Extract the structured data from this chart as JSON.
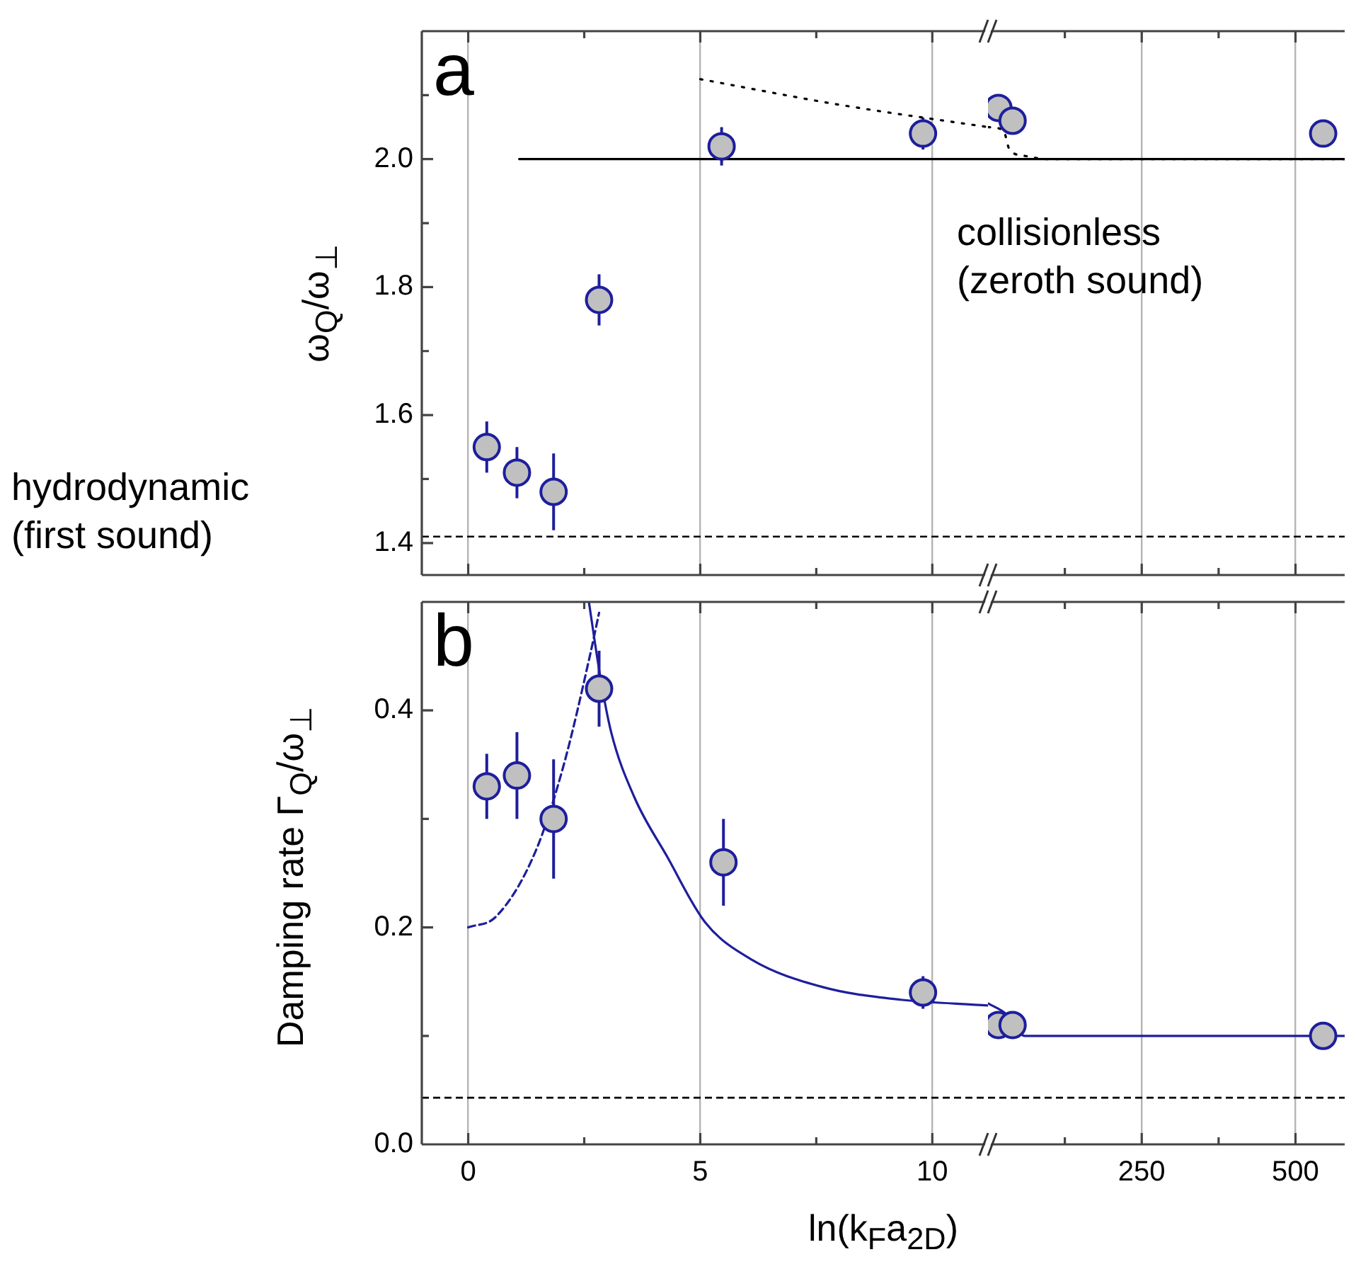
{
  "chart_data": [
    {
      "type": "scatter",
      "title": "a",
      "ylabel": "ω$_{Q}$/ω$_{⊥}$",
      "annotations": [
        "hydrodynamic (first sound)"
      ],
      "xlim": [
        -1,
        11.2
      ],
      "xticks": [
        0,
        {
          "value": 2.5,
          "label": null
        },
        5,
        {
          "value": 7.5,
          "label": null
        },
        10
      ],
      "ylim": [
        1.35,
        2.2
      ],
      "yticks": [
        1.4,
        {
          "value": 1.5,
          "label": null
        },
        1.6,
        {
          "value": 1.7,
          "label": null
        },
        1.8,
        {
          "value": 1.9,
          "label": null
        },
        {
          "value": 2,
          "label": "2.0"
        },
        {
          "value": 2.1,
          "label": null
        }
      ],
      "tick_labels": "y",
      "grid": "x",
      "ref_lines": [
        {
          "axis": "y",
          "value": 1.41,
          "color": "#000000",
          "line_style": "dashed"
        }
      ],
      "series": [
        {
          "type": "scatter",
          "color": "#1e1e9c",
          "marker": "circle",
          "x": [
            0.4,
            1.05,
            1.84,
            2.82,
            5.46,
            9.8
          ],
          "values": [
            1.55,
            1.51,
            1.48,
            1.78,
            2.02,
            2.04
          ],
          "errors": [
            0.04,
            0.04,
            0.06,
            0.04,
            0.03,
            0.025
          ]
        },
        {
          "type": "line",
          "color": "#000000",
          "line_style": "solid",
          "x": [
            1.1,
            11.2
          ],
          "values": [
            2,
            2
          ]
        },
        {
          "type": "line",
          "color": "#000000",
          "line_style": "dotted",
          "x": [
            5,
            8,
            11.2
          ],
          "values": [
            2.125,
            2.085,
            2.05
          ]
        }
      ]
    },
    {
      "type": "scatter",
      "annotations": [
        "collisionless (zeroth sound)"
      ],
      "xlim": [
        0,
        580
      ],
      "xticks": [
        {
          "value": 125,
          "label": null
        },
        250,
        {
          "value": 375,
          "label": null
        },
        500
      ],
      "ylim": [
        1.35,
        2.2
      ],
      "tick_labels": false,
      "grid": "x",
      "ref_lines": [
        {
          "axis": "y",
          "value": 1.41,
          "color": "#000000",
          "line_style": "dashed"
        }
      ],
      "series": [
        {
          "type": "scatter",
          "color": "#1e1e9c",
          "marker": "circle",
          "x": [
            17,
            40,
            545
          ],
          "values": [
            2.08,
            2.06,
            2.04
          ]
        },
        {
          "type": "line",
          "color": "#000000",
          "line_style": "solid",
          "x": [
            0,
            580
          ],
          "values": [
            2,
            2
          ]
        },
        {
          "type": "line",
          "color": "#000000",
          "line_style": "dotted",
          "x": [
            0,
            25,
            35,
            60,
            100,
            580
          ],
          "values": [
            2.05,
            2.045,
            2.015,
            2.005,
            2,
            2
          ]
        }
      ]
    },
    {
      "type": "scatter",
      "title": "b",
      "ylabel": "Damping rate Γ$_{Q}$/ω$_{⊥}$",
      "xlabel": "ln(k$_{F}$a$_{2D}$)",
      "xlim": [
        -1,
        11.2
      ],
      "xticks": [
        0,
        {
          "value": 2.5,
          "label": null
        },
        5,
        {
          "value": 7.5,
          "label": null
        },
        10
      ],
      "ylim": [
        0,
        0.5
      ],
      "yticks": [
        {
          "value": 0,
          "label": "0.0"
        },
        {
          "value": 0.1,
          "label": null
        },
        0.2,
        {
          "value": 0.3,
          "label": null
        },
        0.4
      ],
      "grid": "x",
      "ref_lines": [
        {
          "axis": "y",
          "value": 0.043,
          "color": "#000000",
          "line_style": "dashed"
        }
      ],
      "series": [
        {
          "type": "scatter",
          "color": "#1e1e9c",
          "marker": "circle",
          "x": [
            0.4,
            1.05,
            1.84,
            2.82,
            5.5,
            9.8
          ],
          "values": [
            0.33,
            0.34,
            0.3,
            0.42,
            0.26,
            0.14
          ],
          "errors": [
            0.03,
            0.04,
            0.055,
            0.035,
            0.04,
            0.015
          ]
        },
        {
          "type": "line",
          "color": "#1e1e9c",
          "line_style": "dashed",
          "x": [
            0,
            0.6,
            1.45,
            2.06,
            2.62,
            2.82
          ],
          "values": [
            0.2,
            0.21,
            0.27,
            0.35,
            0.45,
            0.49
          ]
        },
        {
          "type": "line",
          "color": "#1e1e9c",
          "line_style": "solid",
          "x": [
            2.6,
            2.85,
            3.08,
            3.58,
            4.29,
            5.1,
            6.12,
            7.64,
            9.17,
            11.2
          ],
          "values": [
            0.5,
            0.43,
            0.38,
            0.32,
            0.265,
            0.205,
            0.17,
            0.145,
            0.134,
            0.128
          ]
        }
      ]
    },
    {
      "type": "scatter",
      "xlim": [
        0,
        580
      ],
      "xticks": [
        {
          "value": 125,
          "label": null
        },
        250,
        {
          "value": 375,
          "label": null
        },
        500
      ],
      "ylim": [
        0,
        0.5
      ],
      "tick_labels": "x",
      "grid": "x",
      "ref_lines": [
        {
          "axis": "y",
          "value": 0.043,
          "color": "#000000",
          "line_style": "dashed"
        }
      ],
      "series": [
        {
          "type": "scatter",
          "color": "#1e1e9c",
          "marker": "circle",
          "x": [
            17,
            40,
            545
          ],
          "values": [
            0.11,
            0.11,
            0.1
          ]
        },
        {
          "type": "line",
          "color": "#1e1e9c",
          "line_style": "solid",
          "x": [
            0,
            30,
            60,
            580
          ],
          "values": [
            0.13,
            0.12,
            0.1,
            0.1
          ]
        }
      ]
    }
  ]
}
